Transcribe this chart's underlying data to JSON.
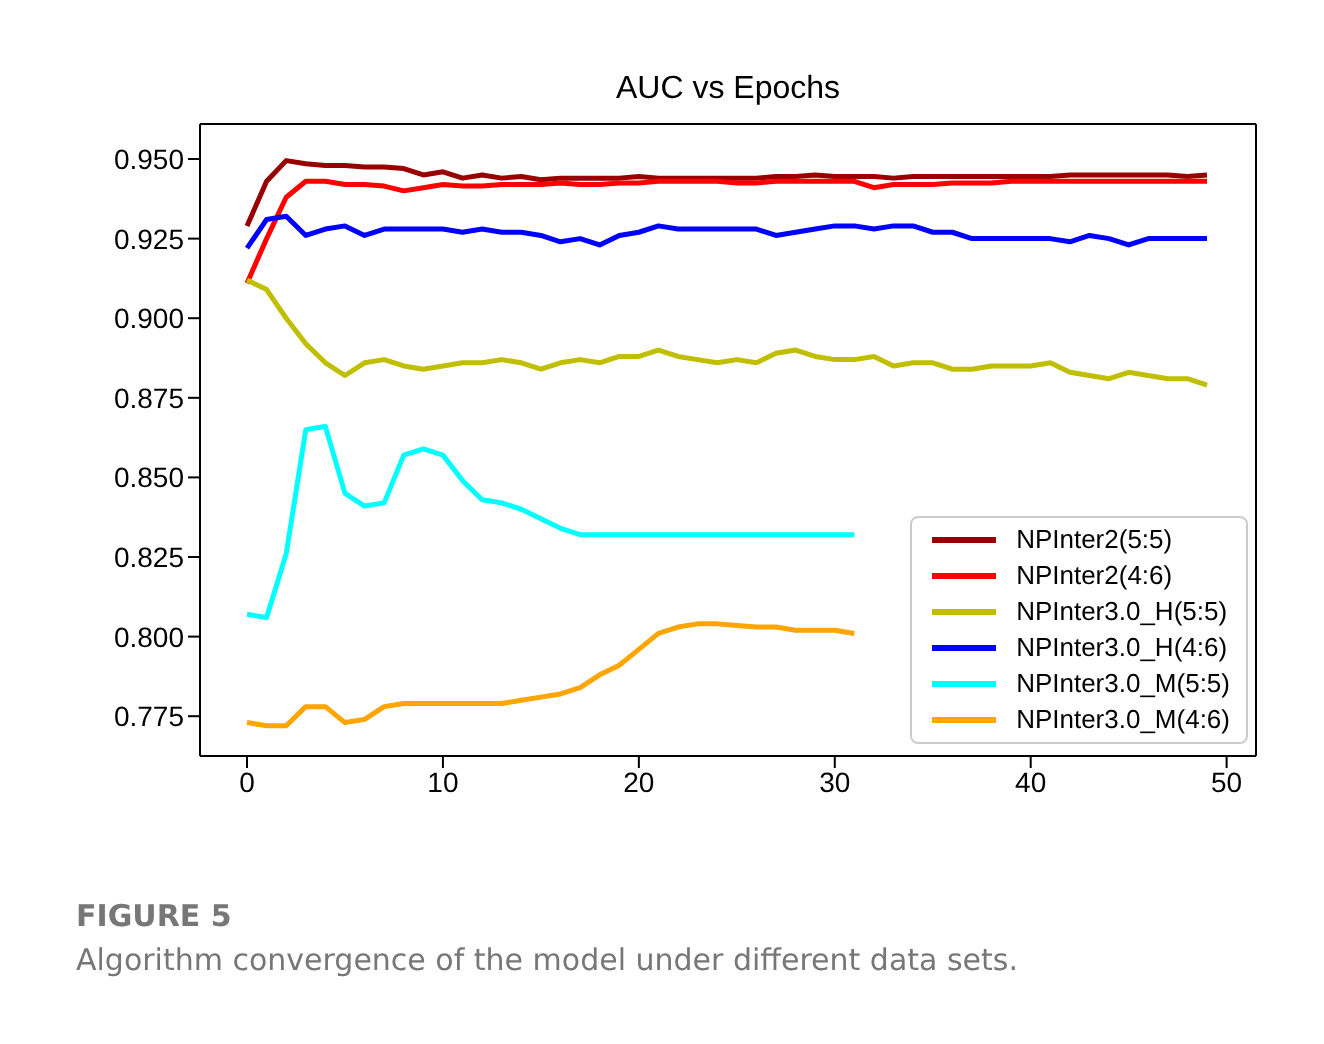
{
  "chart_data": {
    "type": "line",
    "title": "AUC vs Epochs",
    "x": [
      0,
      1,
      2,
      3,
      4,
      5,
      6,
      7,
      8,
      9,
      10,
      11,
      12,
      13,
      14,
      15,
      16,
      17,
      18,
      19,
      20,
      21,
      22,
      23,
      24,
      25,
      26,
      27,
      28,
      29,
      30,
      31,
      32,
      33,
      34,
      35,
      36,
      37,
      38,
      39,
      40,
      41,
      42,
      43,
      44,
      45,
      46,
      47,
      48,
      49
    ],
    "series": [
      {
        "name": "NPInter2(5:5)",
        "color": "#990000",
        "values": [
          0.929,
          0.943,
          0.9495,
          0.9485,
          0.948,
          0.948,
          0.9475,
          0.9475,
          0.947,
          0.945,
          0.946,
          0.944,
          0.945,
          0.944,
          0.9445,
          0.9435,
          0.944,
          0.944,
          0.944,
          0.944,
          0.9445,
          0.944,
          0.944,
          0.944,
          0.944,
          0.944,
          0.944,
          0.9445,
          0.9445,
          0.945,
          0.9445,
          0.9445,
          0.9445,
          0.944,
          0.9445,
          0.9445,
          0.9445,
          0.9445,
          0.9445,
          0.9445,
          0.9445,
          0.9445,
          0.945,
          0.945,
          0.945,
          0.945,
          0.945,
          0.945,
          0.9445,
          0.945
        ]
      },
      {
        "name": "NPInter2(4:6)",
        "color": "#ff0000",
        "values": [
          0.911,
          0.925,
          0.938,
          0.943,
          0.943,
          0.942,
          0.942,
          0.9415,
          0.94,
          0.941,
          0.942,
          0.9415,
          0.9415,
          0.942,
          0.942,
          0.942,
          0.9425,
          0.942,
          0.942,
          0.9425,
          0.9425,
          0.943,
          0.943,
          0.943,
          0.943,
          0.9425,
          0.9425,
          0.943,
          0.943,
          0.943,
          0.943,
          0.943,
          0.941,
          0.942,
          0.942,
          0.942,
          0.9425,
          0.9425,
          0.9425,
          0.943,
          0.943,
          0.943,
          0.943,
          0.943,
          0.943,
          0.943,
          0.943,
          0.943,
          0.943,
          0.943
        ]
      },
      {
        "name": "NPInter3.0_H(5:5)",
        "color": "#bfbf00",
        "values": [
          0.912,
          0.909,
          0.9,
          0.892,
          0.886,
          0.882,
          0.886,
          0.887,
          0.885,
          0.884,
          0.885,
          0.886,
          0.886,
          0.887,
          0.886,
          0.884,
          0.886,
          0.887,
          0.886,
          0.888,
          0.888,
          0.89,
          0.888,
          0.887,
          0.886,
          0.887,
          0.886,
          0.889,
          0.89,
          0.888,
          0.887,
          0.887,
          0.888,
          0.885,
          0.886,
          0.886,
          0.884,
          0.884,
          0.885,
          0.885,
          0.885,
          0.886,
          0.883,
          0.882,
          0.881,
          0.883,
          0.882,
          0.881,
          0.881,
          0.879
        ]
      },
      {
        "name": "NPInter3.0_H(4:6)",
        "color": "#0000ff",
        "values": [
          0.922,
          0.931,
          0.932,
          0.926,
          0.928,
          0.929,
          0.926,
          0.928,
          0.928,
          0.928,
          0.928,
          0.927,
          0.928,
          0.927,
          0.927,
          0.926,
          0.924,
          0.925,
          0.923,
          0.926,
          0.927,
          0.929,
          0.928,
          0.928,
          0.928,
          0.928,
          0.928,
          0.926,
          0.927,
          0.928,
          0.929,
          0.929,
          0.928,
          0.929,
          0.929,
          0.927,
          0.927,
          0.925,
          0.925,
          0.925,
          0.925,
          0.925,
          0.924,
          0.926,
          0.925,
          0.923,
          0.925,
          0.925,
          0.925,
          0.925
        ]
      },
      {
        "name": "NPInter3.0_M(5:5)",
        "color": "#00ffff",
        "values": [
          0.807,
          0.806,
          0.826,
          0.865,
          0.866,
          0.845,
          0.841,
          0.842,
          0.857,
          0.859,
          0.857,
          0.849,
          0.843,
          0.842,
          0.84,
          0.837,
          0.834,
          0.832,
          0.832,
          0.832,
          0.832,
          0.832,
          0.832,
          0.832,
          0.832,
          0.832,
          0.832,
          0.832,
          0.832,
          0.832,
          0.832,
          0.832,
          null,
          null,
          null,
          null,
          null,
          null,
          null,
          null,
          null,
          null,
          null,
          null,
          null,
          null,
          null,
          null,
          null,
          null
        ]
      },
      {
        "name": "NPInter3.0_M(4:6)",
        "color": "#ffa500",
        "values": [
          0.773,
          0.772,
          0.772,
          0.778,
          0.778,
          0.773,
          0.774,
          0.778,
          0.779,
          0.779,
          0.779,
          0.779,
          0.779,
          0.779,
          0.78,
          0.781,
          0.782,
          0.784,
          0.788,
          0.791,
          0.796,
          0.801,
          0.803,
          0.804,
          0.804,
          0.8035,
          0.803,
          0.803,
          0.802,
          0.802,
          0.802,
          0.801,
          null,
          null,
          null,
          null,
          null,
          null,
          null,
          null,
          null,
          null,
          null,
          null,
          null,
          null,
          null,
          null,
          null,
          null
        ]
      }
    ],
    "xlim": [
      -2.4,
      51.5
    ],
    "xticks": [
      0,
      10,
      20,
      30,
      40,
      50
    ],
    "ylim": [
      0.7625,
      0.961
    ],
    "yticks": [
      {
        "value": 0.775,
        "label": "0.775"
      },
      {
        "value": 0.8,
        "label": "0.800"
      },
      {
        "value": 0.825,
        "label": "0.825"
      },
      {
        "value": 0.85,
        "label": "0.850"
      },
      {
        "value": 0.875,
        "label": "0.875"
      },
      {
        "value": 0.9,
        "label": "0.900"
      },
      {
        "value": 0.925,
        "label": "0.925"
      },
      {
        "value": 0.95,
        "label": "0.950"
      }
    ],
    "legend": "bottom right",
    "grid": false,
    "marker": "none",
    "line_style": "solid",
    "annotations": [
      "FIGURE 5",
      "Algorithm convergence of the model under different data sets."
    ]
  }
}
